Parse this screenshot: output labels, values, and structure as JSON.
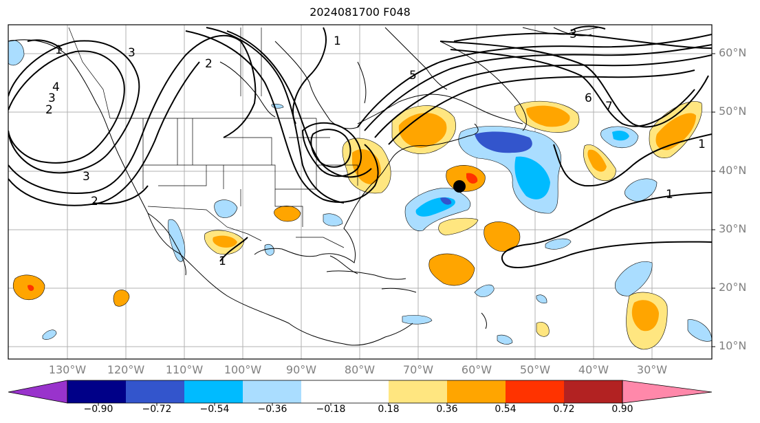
{
  "title": "2024081700 F048",
  "lat_labels": [
    "60°N",
    "50°N",
    "40°N",
    "30°N",
    "20°N",
    "10°N"
  ],
  "lon_labels": [
    "130°W",
    "120°W",
    "110°W",
    "100°W",
    "90°W",
    "80°W",
    "70°W",
    "60°W",
    "50°W",
    "40°W",
    "30°W"
  ],
  "colorbar": {
    "ticks": [
      "−0.90",
      "−0.72",
      "−0.54",
      "−0.36",
      "−0.18",
      "0.18",
      "0.36",
      "0.54",
      "0.72",
      "0.90"
    ],
    "colors": [
      "#9933cc",
      "#000088",
      "#3355cc",
      "#00bbff",
      "#aaddff",
      "#ffffff",
      "#ffe680",
      "#ffa500",
      "#ff3300",
      "#b22222",
      "#ff88aa"
    ]
  },
  "contour_labels": [
    "1",
    "1",
    "3",
    "2",
    "1",
    "1",
    "1",
    "2",
    "3",
    "4",
    "5",
    "6",
    "7",
    "3",
    "3",
    "2"
  ],
  "marker": "storm-center-dot"
}
